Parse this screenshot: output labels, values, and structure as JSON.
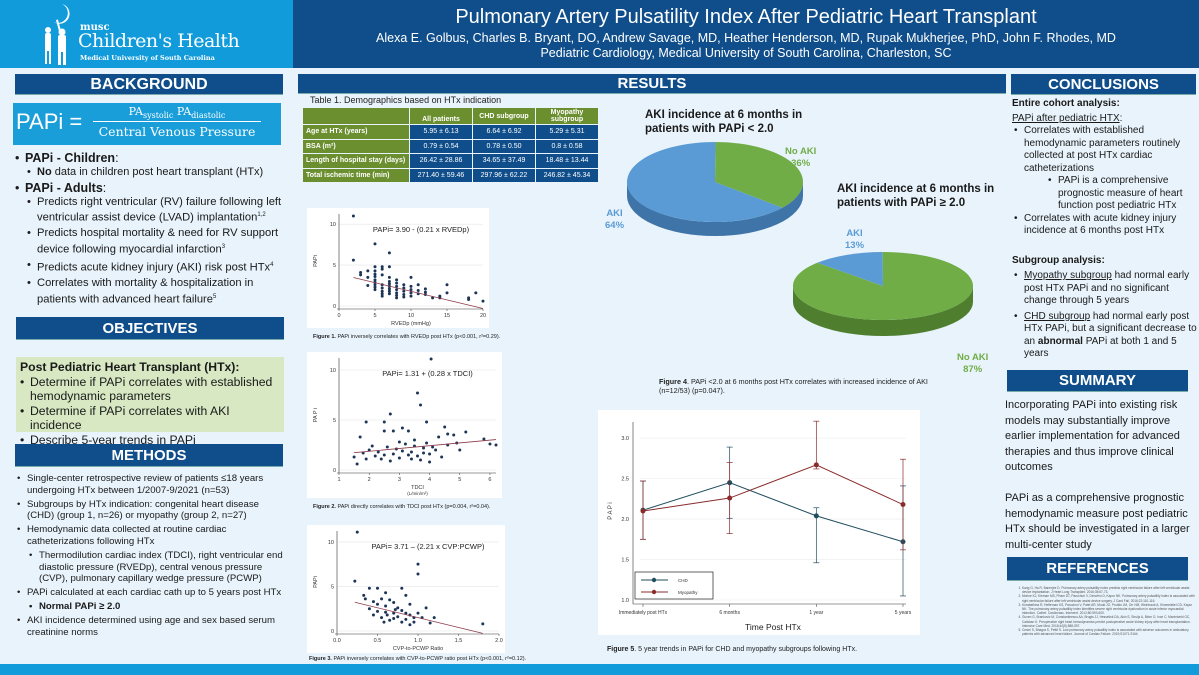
{
  "header": {
    "logo": {
      "musc": "musc",
      "name": "Children's Health",
      "sub": "Medical University of South Carolina"
    },
    "title": "Pulmonary Artery Pulsatility Index After Pediatric Heart Transplant",
    "authors": "Alexa E. Golbus, Charles B. Bryant, DO, Andrew Savage, MD, Heather Henderson, MD, Rupak Mukherjee, PhD, John F. Rhodes, MD",
    "affiliation": "Pediatric Cardiology, Medical University of South Carolina, Charleston, SC"
  },
  "background": {
    "heading": "BACKGROUND",
    "formula": {
      "lhs": "PAPi =",
      "num_a": "PA",
      "num_a_sub": "systolic",
      "num_b": "PA",
      "num_b_sub": "diastolic",
      "den": "Central Venous Pressure"
    },
    "children_label": "PAPi - Children",
    "children_no": "No",
    "children_text": " data in children post heart transplant (HTx)",
    "adults_label": "PAPi - Adults",
    "adults_items": [
      "Predicts right ventricular (RV) failure following left ventricular assist device (LVAD) implantation",
      "Predicts hospital mortality & need for RV support device following myocardial infarction",
      "Predicts acute kidney injury (AKI) risk post HTx",
      "Correlates with mortality & hospitalization in patients with advanced heart failure"
    ],
    "adults_refs": [
      "1,2",
      "3",
      "4",
      "5"
    ]
  },
  "objectives": {
    "heading": "OBJECTIVES",
    "intro": "Post Pediatric Heart Transplant (HTx):",
    "items": [
      "Determine if PAPi correlates with established hemodynamic parameters",
      "Determine if PAPi correlates with AKI incidence",
      "Describe 5-year trends in PAPi"
    ]
  },
  "methods": {
    "heading": "METHODS",
    "items": [
      "Single-center retrospective review of patients ≤18 years undergoing HTx between 1/2007-9/2021 (n=53)",
      "Subgroups by HTx indication: congenital heart disease (CHD) (group 1, n=26) or myopathy (group 2, n=27)",
      "Hemodynamic data collected at routine cardiac catheterizations following HTx"
    ],
    "sub_item": "Thermodilution cardiac index (TDCI), right ventricular end diastolic pressure (RVEDp), central venous pressure (CVP), pulmonary capillary wedge pressure (PCWP)",
    "papi_item": "PAPi calculated at each cardiac cath up to 5 years post HTx",
    "normal": "Normal PAPi ≥ 2.0",
    "aki_item": "AKI incidence determined using age and sex based serum creatinine norms"
  },
  "results": {
    "heading": "RESULTS",
    "table": {
      "caption": "Table 1. Demographics based on HTx indication",
      "columns": [
        "",
        "All patients",
        "CHD subgroup",
        "Myopathy subgroup"
      ],
      "rows": [
        [
          "Age at HTx (years)",
          "5.95 ± 6.13",
          "6.64 ± 6.92",
          "5.29 ± 5.31"
        ],
        [
          "BSA (m²)",
          "0.79 ± 0.54",
          "0.78 ± 0.50",
          "0.8 ± 0.58"
        ],
        [
          "Length of hospital stay (days)",
          "26.42 ± 28.86",
          "34.65 ± 37.49",
          "18.48 ± 13.44"
        ],
        [
          "Total ischemic time (min)",
          "271.40 ± 59.46",
          "297.96 ± 62.22",
          "246.82 ± 45.34"
        ]
      ]
    },
    "fig1_caption_bold": "Figure 1.",
    "fig1_caption": " PAPi inversely correlates with RVEDp post HTx (p<0.001, r²=0.29).",
    "fig2_caption_bold": "Figure 2.",
    "fig2_caption": " PAPi directly correlates with TDCI post HTx (p=0.004, r²=0.04).",
    "fig3_caption_bold": "Figure 3.",
    "fig3_caption": " PAPi inversely correlates with CVP-to-PCWP ratio post HTx (p<0.001, r²=0.12).",
    "fig4_caption_bold": "Figure 4",
    "fig4_caption": ". PAPi <2.0 at 6 months post HTx correlates with increased incidence of AKI (n=12/53) (p=0.047).",
    "fig5_caption_bold": "Figure 5",
    "fig5_caption": ". 5 year trends in PAPi for CHD and myopathy subgroups following HTx."
  },
  "chart_data": [
    {
      "type": "scatter",
      "title": "PAPi= 3.90 - (0.21 x RVEDp)",
      "xlabel": "RVEDp (mmHg)",
      "ylabel": "PAPi",
      "xlim": [
        0,
        20
      ],
      "ylim": [
        0,
        11
      ],
      "xticks": [
        "0",
        "5",
        "10",
        "15",
        "20"
      ],
      "yticks": [
        "0",
        "5",
        "10"
      ],
      "fit": {
        "intercept": 3.9,
        "slope": -0.21,
        "x_range": [
          2,
          20
        ]
      },
      "points": [
        [
          2,
          11
        ],
        [
          2,
          5.6
        ],
        [
          3,
          3.8
        ],
        [
          3,
          4.1
        ],
        [
          4,
          4.3
        ],
        [
          4,
          3.5
        ],
        [
          4,
          2.5
        ],
        [
          5,
          7.6
        ],
        [
          5,
          4.8
        ],
        [
          5,
          4.3
        ],
        [
          5,
          3.9
        ],
        [
          5,
          3.6
        ],
        [
          5,
          3.2
        ],
        [
          5,
          2.9
        ],
        [
          5,
          2.6
        ],
        [
          5,
          2.3
        ],
        [
          5,
          2.0
        ],
        [
          6,
          4.8
        ],
        [
          6,
          4.5
        ],
        [
          6,
          3.8
        ],
        [
          6,
          2.6
        ],
        [
          6,
          2.2
        ],
        [
          6,
          1.8
        ],
        [
          6,
          1.5
        ],
        [
          6,
          1.2
        ],
        [
          7,
          6.5
        ],
        [
          7,
          4.8
        ],
        [
          7,
          3.5
        ],
        [
          7,
          3.0
        ],
        [
          7,
          2.7
        ],
        [
          7,
          2.4
        ],
        [
          7,
          2.1
        ],
        [
          7,
          1.8
        ],
        [
          7,
          1.5
        ],
        [
          8,
          3.2
        ],
        [
          8,
          2.8
        ],
        [
          8,
          2.4
        ],
        [
          8,
          2.0
        ],
        [
          8,
          1.6
        ],
        [
          8,
          1.3
        ],
        [
          8,
          1.0
        ],
        [
          9,
          2.6
        ],
        [
          9,
          2.2
        ],
        [
          9,
          1.8
        ],
        [
          9,
          1.4
        ],
        [
          9,
          1.1
        ],
        [
          10,
          3.5
        ],
        [
          10,
          2.4
        ],
        [
          10,
          2.0
        ],
        [
          10,
          1.6
        ],
        [
          10,
          1.2
        ],
        [
          11,
          2.6
        ],
        [
          11,
          1.9
        ],
        [
          11,
          1.5
        ],
        [
          12,
          2.1
        ],
        [
          12,
          1.7
        ],
        [
          12,
          1.4
        ],
        [
          13,
          1.0
        ],
        [
          14,
          1.2
        ],
        [
          14,
          1.0
        ],
        [
          15,
          2.6
        ],
        [
          15,
          1.6
        ],
        [
          18,
          1.0
        ],
        [
          18,
          0.8
        ],
        [
          19,
          1.6
        ],
        [
          20,
          0.6
        ]
      ]
    },
    {
      "type": "scatter",
      "title": "PAPi= 1.31 + (0.28 x TDCI)",
      "xlabel": "TDCI",
      "xlabel_unit": "(L/min/m²)",
      "ylabel": "PA P i",
      "xlim": [
        1,
        6.2
      ],
      "ylim": [
        0,
        11
      ],
      "xticks": [
        "1",
        "2",
        "3",
        "4",
        "5",
        "6"
      ],
      "yticks": [
        "0",
        "5",
        "10"
      ],
      "fit": {
        "intercept": 1.31,
        "slope": 0.28,
        "x_range": [
          1.5,
          6.2
        ]
      },
      "points": [
        [
          4.05,
          11.1
        ],
        [
          3.6,
          7.7
        ],
        [
          3.7,
          6.5
        ],
        [
          2.7,
          5.6
        ],
        [
          1.9,
          4.8
        ],
        [
          2.5,
          4.8
        ],
        [
          3.9,
          4.8
        ],
        [
          4.5,
          4.3
        ],
        [
          1.7,
          3.3
        ],
        [
          2.5,
          3.9
        ],
        [
          2.8,
          3.9
        ],
        [
          3.1,
          4.2
        ],
        [
          3.3,
          3.9
        ],
        [
          5.2,
          3.8
        ],
        [
          4.6,
          3.6
        ],
        [
          4.8,
          3.5
        ],
        [
          5.8,
          3.1
        ],
        [
          6.0,
          2.6
        ],
        [
          6.2,
          2.5
        ],
        [
          1.5,
          1.3
        ],
        [
          1.6,
          0.6
        ],
        [
          1.8,
          1.7
        ],
        [
          2.0,
          2.0
        ],
        [
          2.2,
          1.4
        ],
        [
          2.4,
          1.1
        ],
        [
          2.6,
          2.3
        ],
        [
          2.8,
          1.6
        ],
        [
          3.0,
          1.2
        ],
        [
          3.2,
          2.6
        ],
        [
          3.4,
          1.8
        ],
        [
          3.6,
          1.4
        ],
        [
          3.8,
          2.2
        ],
        [
          4.0,
          1.6
        ],
        [
          4.2,
          2.0
        ],
        [
          4.4,
          1.3
        ],
        [
          4.6,
          2.5
        ],
        [
          4.9,
          2.7
        ],
        [
          5.0,
          2.0
        ],
        [
          2.1,
          2.4
        ],
        [
          2.9,
          2.1
        ],
        [
          3.3,
          1.5
        ],
        [
          3.5,
          2.4
        ],
        [
          3.7,
          1.0
        ],
        [
          3.9,
          2.7
        ],
        [
          4.1,
          2.3
        ],
        [
          2.3,
          1.8
        ],
        [
          2.7,
          0.9
        ],
        [
          3.1,
          1.9
        ],
        [
          3.5,
          3.0
        ],
        [
          4.3,
          3.3
        ],
        [
          1.9,
          1.1
        ],
        [
          2.5,
          1.5
        ],
        [
          3.0,
          2.8
        ],
        [
          3.4,
          1.1
        ],
        [
          3.8,
          1.7
        ],
        [
          4.0,
          0.8
        ]
      ]
    },
    {
      "type": "scatter",
      "title": "PAPi= 3.71 – (2.21 x CVP:PCWP)",
      "xlabel": "CVP-to-PCWP Ratio",
      "ylabel": "PAPi",
      "xlim": [
        0,
        2.0
      ],
      "ylim": [
        0,
        11
      ],
      "xticks": [
        "0.0",
        "0.5",
        "1.0",
        "1.5",
        "2.0"
      ],
      "yticks": [
        "0",
        "5",
        "10"
      ],
      "fit": {
        "intercept": 3.71,
        "slope": -2.21,
        "x_range": [
          0.22,
          1.8
        ]
      },
      "points": [
        [
          0.25,
          11.1
        ],
        [
          0.22,
          5.6
        ],
        [
          1.0,
          7.5
        ],
        [
          1.0,
          6.4
        ],
        [
          0.4,
          4.8
        ],
        [
          0.5,
          4.8
        ],
        [
          0.8,
          4.8
        ],
        [
          0.6,
          4.3
        ],
        [
          0.85,
          4.0
        ],
        [
          0.33,
          4.0
        ],
        [
          0.35,
          3.6
        ],
        [
          0.45,
          3.3
        ],
        [
          0.55,
          3.6
        ],
        [
          0.65,
          3.5
        ],
        [
          0.7,
          3.2
        ],
        [
          0.9,
          3.0
        ],
        [
          1.1,
          2.6
        ],
        [
          0.4,
          2.5
        ],
        [
          0.5,
          2.2
        ],
        [
          0.6,
          2.8
        ],
        [
          0.7,
          2.0
        ],
        [
          0.8,
          2.3
        ],
        [
          0.9,
          1.8
        ],
        [
          1.0,
          2.0
        ],
        [
          1.05,
          1.5
        ],
        [
          1.2,
          1.5
        ],
        [
          0.45,
          1.8
        ],
        [
          0.55,
          1.5
        ],
        [
          0.65,
          1.2
        ],
        [
          0.75,
          1.6
        ],
        [
          0.85,
          1.3
        ],
        [
          0.95,
          1.0
        ],
        [
          1.15,
          0.9
        ],
        [
          0.6,
          2.1
        ],
        [
          0.7,
          1.4
        ],
        [
          0.8,
          1.0
        ],
        [
          0.9,
          0.7
        ],
        [
          1.8,
          0.8
        ],
        [
          0.5,
          3.0
        ],
        [
          0.75,
          2.6
        ],
        [
          0.85,
          2.0
        ],
        [
          0.95,
          1.5
        ],
        [
          0.62,
          1.8
        ],
        [
          0.72,
          2.4
        ],
        [
          0.58,
          1.0
        ]
      ]
    },
    {
      "type": "pie",
      "title": "AKI incidence at 6 months in patients with PAPi < 2.0",
      "slices": [
        {
          "label": "AKI",
          "value": 64,
          "color": "#5b9bd5"
        },
        {
          "label": "No AKI",
          "value": 36,
          "color": "#70ad47"
        }
      ]
    },
    {
      "type": "pie",
      "title": "AKI incidence at 6 months in patients with PAPi ≥ 2.0",
      "slices": [
        {
          "label": "AKI",
          "value": 13,
          "color": "#5b9bd5"
        },
        {
          "label": "No AKI",
          "value": 87,
          "color": "#70ad47"
        }
      ]
    },
    {
      "type": "line",
      "xlabel": "Time Post HTx",
      "ylabel": "P A P i",
      "categories": [
        "Immediately post HTx",
        "6 months",
        "1 year",
        "5 years"
      ],
      "ylim": [
        1.0,
        3.2
      ],
      "yticks": [
        "1.0",
        "1.5",
        "2.0",
        "2.5",
        "3.0"
      ],
      "legend": "bottom-left",
      "series": [
        {
          "name": "CHD",
          "color": "#1f4e5f",
          "values": [
            2.11,
            2.45,
            2.04,
            1.72
          ],
          "lower": [
            1.75,
            2.01,
            1.46,
            1.05
          ],
          "upper": [
            2.47,
            2.89,
            2.14,
            2.41
          ]
        },
        {
          "name": "Myopathy",
          "color": "#8b2c2c",
          "values": [
            2.1,
            2.26,
            2.67,
            2.18
          ],
          "lower": [
            1.75,
            1.82,
            2.62,
            1.62
          ],
          "upper": [
            2.47,
            2.7,
            3.21,
            2.74
          ]
        }
      ]
    }
  ],
  "conclusions": {
    "heading": "CONCLUSIONS",
    "cohort_label": "Entire cohort analysis:",
    "after_label": "PAPi after pediatric HTX",
    "items": [
      "Correlates with established hemodynamic parameters routinely collected at post HTx cardiac catheterizations",
      "Correlates with acute kidney injury incidence at 6 months post HTx"
    ],
    "sub_item": "PAPi is a comprehensive prognostic measure of heart function post pediatric HTx",
    "subgroup_label": "Subgroup analysis:",
    "myo_u": "Myopathy subgroup",
    "myo_text": " had normal early post HTx PAPi and no significant change through 5 years",
    "chd_u": "CHD subgroup",
    "chd_text": " had normal early post HTx PAPi, but a significant decrease to an ",
    "chd_bold": "abnormal",
    "chd_end": " PAPi at both 1 and 5 years"
  },
  "summary": {
    "heading": "SUMMARY",
    "p1": "Incorporating PAPi into existing risk models may substantially improve earlier implementation for advanced therapies and thus improve clinical outcomes",
    "p2": "PAPi as a comprehensive prognostic hemodynamic measure post pediatric HTx should be investigated in a larger multi-center study"
  },
  "references": {
    "heading": "REFERENCES",
    "items": [
      "Kang G, Ha R, Banerjee D. Pulmonary artery pulsatility index predicts right ventricular failure after left ventricular assist device implantation. J Heart Lung Transplant. 2016;35:67-73.",
      "Morine KJ, Kiernan MS, Pham DT, Paruchuri V, Denofrio D, Kapur NK. Pulmonary artery pulsatility index is associated with right ventricular failure after left ventricular assist device surgery. J Card Fail. 2016;22:110-116.",
      "Korabathina R, Heffernan KS, Paruchuri V, Patel AR, Mudd JO, Prutkin JM, Orr NM, Weintraub A, Kimmelstiel CD, Kapur NK. The pulmonary artery pulsatility index identifies severe right ventricular dysfunction in acute inferior myocardial infarction. Cathet. Cardiovasc. Intervent. 2012;80:593-600.",
      "Guven G, Brankovic M, Constantinescu AA, Brugts JJ, Hesselink DA, Akin S, Struijs A, Birim O, Ince C, Manintveld OC, Caliskan K. Preoperative right heart hemodynamics predict postoperative acute kidney injury after heart transplantation. Intensive Care Med. 2018;44(5):588-597.",
      "Cesini S, Bhagra S, Pettit S. Low pulmonary artery pulsatility index is associated with adverse outcomes in ambulatory patients with advanced heart failure. Journal of Cardiac Failure. 2019;S1071-9164."
    ]
  }
}
